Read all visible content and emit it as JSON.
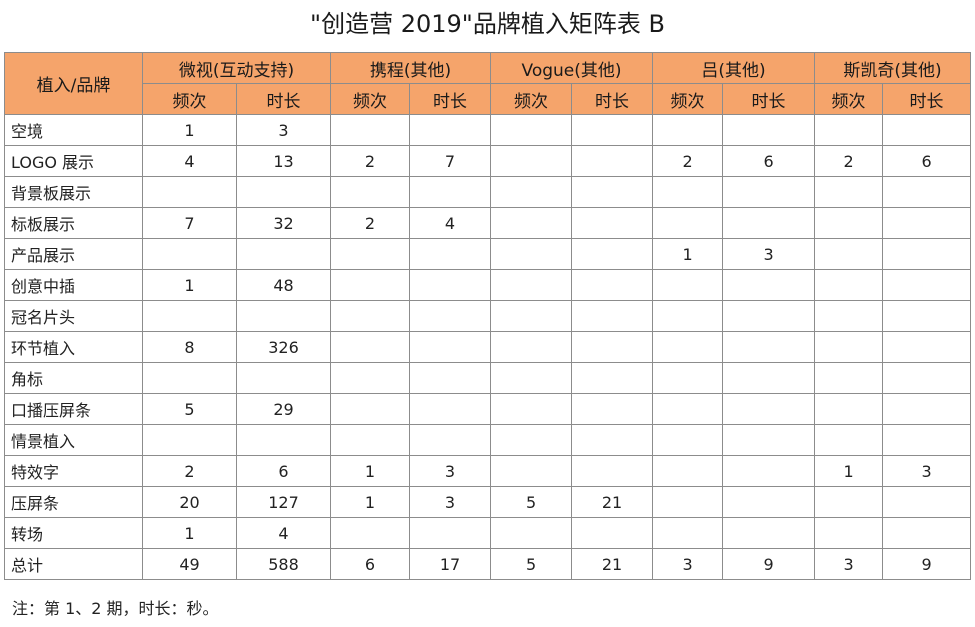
{
  "title": "\"创造营 2019\"品牌植入矩阵表  B",
  "header": {
    "row_label": "植入/品牌",
    "brands": [
      "微视(互动支持)",
      "携程(其他)",
      "Vogue(其他)",
      "吕(其他)",
      "斯凯奇(其他)"
    ],
    "sub_columns": [
      "频次",
      "时长"
    ]
  },
  "accent_color": "#f5a46b",
  "rows": [
    {
      "label": "空境",
      "cells": [
        "1",
        "3",
        "",
        "",
        "",
        "",
        "",
        "",
        "",
        ""
      ]
    },
    {
      "label": "LOGO 展示",
      "cells": [
        "4",
        "13",
        "2",
        "7",
        "",
        "",
        "2",
        "6",
        "2",
        "6"
      ]
    },
    {
      "label": "背景板展示",
      "cells": [
        "",
        "",
        "",
        "",
        "",
        "",
        "",
        "",
        "",
        ""
      ]
    },
    {
      "label": "标板展示",
      "cells": [
        "7",
        "32",
        "2",
        "4",
        "",
        "",
        "",
        "",
        "",
        ""
      ]
    },
    {
      "label": "产品展示",
      "cells": [
        "",
        "",
        "",
        "",
        "",
        "",
        "1",
        "3",
        "",
        ""
      ]
    },
    {
      "label": "创意中插",
      "cells": [
        "1",
        "48",
        "",
        "",
        "",
        "",
        "",
        "",
        "",
        ""
      ]
    },
    {
      "label": "冠名片头",
      "cells": [
        "",
        "",
        "",
        "",
        "",
        "",
        "",
        "",
        "",
        ""
      ]
    },
    {
      "label": "环节植入",
      "cells": [
        "8",
        "326",
        "",
        "",
        "",
        "",
        "",
        "",
        "",
        ""
      ]
    },
    {
      "label": "角标",
      "cells": [
        "",
        "",
        "",
        "",
        "",
        "",
        "",
        "",
        "",
        ""
      ]
    },
    {
      "label": "口播压屏条",
      "cells": [
        "5",
        "29",
        "",
        "",
        "",
        "",
        "",
        "",
        "",
        ""
      ]
    },
    {
      "label": "情景植入",
      "cells": [
        "",
        "",
        "",
        "",
        "",
        "",
        "",
        "",
        "",
        ""
      ]
    },
    {
      "label": "特效字",
      "cells": [
        "2",
        "6",
        "1",
        "3",
        "",
        "",
        "",
        "",
        "1",
        "3"
      ]
    },
    {
      "label": "压屏条",
      "cells": [
        "20",
        "127",
        "1",
        "3",
        "5",
        "21",
        "",
        "",
        "",
        ""
      ]
    },
    {
      "label": "转场",
      "cells": [
        "1",
        "4",
        "",
        "",
        "",
        "",
        "",
        "",
        "",
        ""
      ]
    },
    {
      "label": "总计",
      "cells": [
        "49",
        "588",
        "6",
        "17",
        "5",
        "21",
        "3",
        "9",
        "3",
        "9"
      ]
    }
  ],
  "note": "注：第 1、2 期，时长：秒。"
}
